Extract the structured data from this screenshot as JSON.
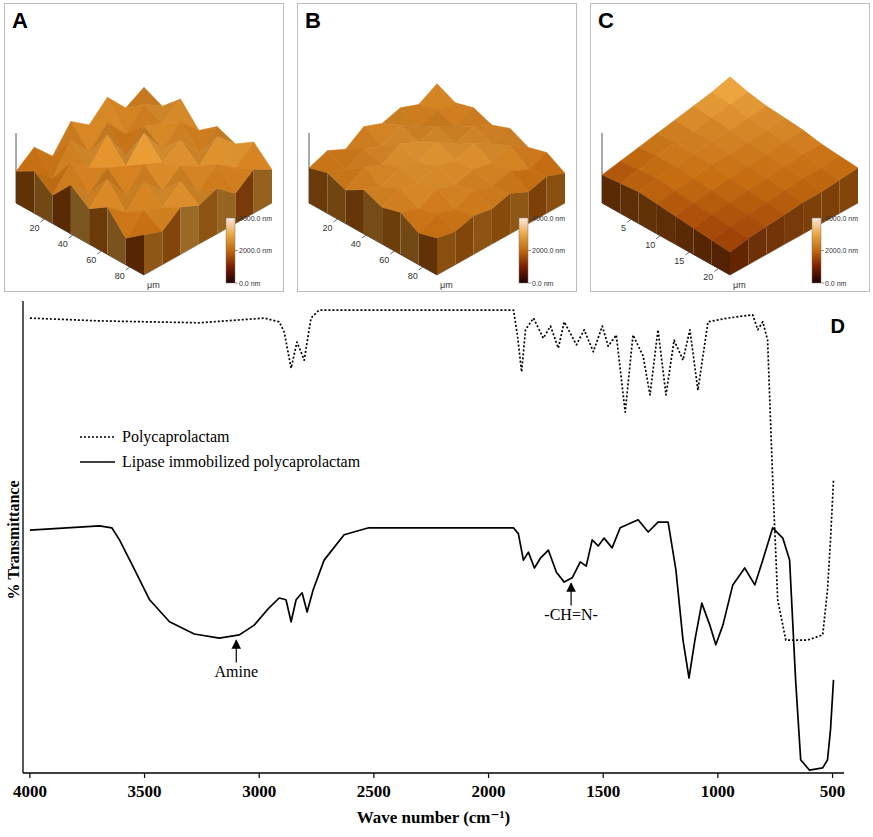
{
  "chart_data": [
    {
      "type": "surface",
      "panel": "A",
      "xlabel": "μm",
      "xlim": [
        0,
        90
      ],
      "xticks": [
        20,
        40,
        60,
        80
      ],
      "colorbar_range": [
        0,
        4000
      ],
      "colorbar_ticks": [
        {
          "value": 0,
          "label": "0.0 nm"
        },
        {
          "value": 2000,
          "label": "2000.0 nm"
        },
        {
          "value": 4000,
          "label": "4000.0 nm"
        }
      ],
      "heights": [
        [
          1800,
          2600,
          1500,
          2900,
          2100,
          3100,
          1900,
          2500
        ],
        [
          2400,
          1400,
          3000,
          1700,
          2800,
          1600,
          2700,
          2000
        ],
        [
          1600,
          2900,
          2000,
          3300,
          1500,
          2600,
          2200,
          3000
        ],
        [
          2800,
          1700,
          2600,
          2100,
          3400,
          1900,
          2900,
          1800
        ],
        [
          2000,
          3100,
          1600,
          2800,
          2300,
          3000,
          1700,
          2600
        ],
        [
          2700,
          1800,
          2900,
          1900,
          2700,
          2100,
          3200,
          2200
        ],
        [
          1500,
          2500,
          2100,
          3000,
          1800,
          2800,
          2000,
          2900
        ],
        [
          2300,
          1900,
          2700,
          2200,
          2600,
          1700,
          2500,
          1900
        ]
      ]
    },
    {
      "type": "surface",
      "panel": "B",
      "xlabel": "μm",
      "xlim": [
        0,
        90
      ],
      "xticks": [
        20,
        40,
        60,
        80
      ],
      "colorbar_range": [
        0,
        4000
      ],
      "colorbar_ticks": [
        {
          "value": 0,
          "label": "0.0 nm"
        },
        {
          "value": 2000,
          "label": "2000.0 nm"
        },
        {
          "value": 4000,
          "label": "4000.0 nm"
        }
      ],
      "heights": [
        [
          2000,
          2400,
          1900,
          2600,
          2200,
          2500,
          2100,
          2700
        ],
        [
          2300,
          1900,
          2500,
          2100,
          2700,
          2000,
          2400,
          2200
        ],
        [
          1900,
          2600,
          2200,
          2800,
          2300,
          2600,
          2000,
          2500
        ],
        [
          2500,
          2100,
          2700,
          2300,
          2900,
          2200,
          2600,
          2100
        ],
        [
          2100,
          2600,
          2300,
          2700,
          2400,
          2800,
          2200,
          2500
        ],
        [
          2400,
          2000,
          2600,
          2200,
          2500,
          2300,
          2700,
          2000
        ],
        [
          1800,
          2300,
          2000,
          2500,
          2100,
          2400,
          1900,
          2300
        ],
        [
          2100,
          1900,
          2200,
          2000,
          2300,
          1800,
          2100,
          1700
        ]
      ]
    },
    {
      "type": "surface",
      "panel": "C",
      "xlabel": "μm",
      "xlim": [
        0,
        22
      ],
      "xticks": [
        5,
        10,
        15,
        20
      ],
      "colorbar_range": [
        0,
        4000
      ],
      "colorbar_ticks": [
        {
          "value": 0,
          "label": "0.0 nm"
        },
        {
          "value": 2000,
          "label": "2000.0 nm"
        },
        {
          "value": 4000,
          "label": "4000.0 nm"
        }
      ],
      "heights": [
        [
          1600,
          1800,
          2000,
          2200,
          2400,
          2600,
          2800,
          3100
        ],
        [
          1700,
          1900,
          2100,
          2300,
          2300,
          2500,
          2700,
          2800
        ],
        [
          1800,
          2000,
          2100,
          2200,
          2400,
          2400,
          2500,
          2600
        ],
        [
          1700,
          1900,
          2000,
          2200,
          2200,
          2300,
          2400,
          2500
        ],
        [
          1600,
          1800,
          1900,
          2000,
          2100,
          2200,
          2300,
          2400
        ],
        [
          1500,
          1700,
          1800,
          1900,
          2000,
          2100,
          2200,
          2200
        ],
        [
          1400,
          1600,
          1700,
          1800,
          1900,
          2000,
          2000,
          2100
        ],
        [
          1300,
          1500,
          1600,
          1700,
          1800,
          1800,
          1900,
          2000
        ]
      ]
    },
    {
      "type": "line",
      "panel": "D",
      "xlabel": "Wave number (cm⁻¹)",
      "ylabel": "% Transmittance",
      "xlim": [
        4030,
        450
      ],
      "xticks": [
        4000,
        3500,
        3000,
        2500,
        2000,
        1500,
        1000,
        500
      ],
      "ylim": [
        0,
        100
      ],
      "tick_labels": "x",
      "legend": "left",
      "series": [
        {
          "name": "Polycaprolactam",
          "color": "#000000",
          "line_style": "dotted",
          "x": [
            4000,
            3696,
            3261,
            2978,
            2913,
            2891,
            2861,
            2835,
            2804,
            2774,
            2739,
            1891,
            1874,
            1856,
            1839,
            1804,
            1761,
            1730,
            1696,
            1670,
            1617,
            1583,
            1543,
            1504,
            1478,
            1443,
            1404,
            1370,
            1326,
            1296,
            1261,
            1226,
            1191,
            1152,
            1122,
            1087,
            1043,
            957,
            848,
            826,
            804,
            783,
            761,
            739,
            704,
            609,
            543,
            522,
            509,
            496
          ],
          "values": [
            97.2,
            96.6,
            96.2,
            97.2,
            96.4,
            94.2,
            86.5,
            92.1,
            88.2,
            97.2,
            98.9,
            98.9,
            93.6,
            85.7,
            94.7,
            97.2,
            92.9,
            95.5,
            90.8,
            96.4,
            91.5,
            94.7,
            90.0,
            95.5,
            91.2,
            93.6,
            77.1,
            93.6,
            89.1,
            80.8,
            94.7,
            80.8,
            92.5,
            88.2,
            94.7,
            81.8,
            96.4,
            97.2,
            97.9,
            94.7,
            96.4,
            92.5,
            62.6,
            37.0,
            28.4,
            28.4,
            29.5,
            39.1,
            49.8,
            62.6
          ]
        },
        {
          "name": "Lipase immobilized polycaprolactam",
          "color": "#000000",
          "line_style": "solid",
          "x": [
            4000,
            3696,
            3643,
            3609,
            3543,
            3478,
            3391,
            3283,
            3174,
            3087,
            3022,
            2957,
            2913,
            2883,
            2861,
            2839,
            2813,
            2791,
            2765,
            2717,
            2630,
            2522,
            1891,
            1870,
            1848,
            1826,
            1800,
            1774,
            1739,
            1704,
            1670,
            1635,
            1600,
            1574,
            1548,
            1522,
            1496,
            1461,
            1426,
            1348,
            1304,
            1261,
            1217,
            1183,
            1152,
            1126,
            1100,
            1070,
            1035,
            1009,
            978,
            935,
            883,
            839,
            804,
            761,
            717,
            687,
            661,
            639,
            600,
            543,
            522,
            509,
            496
          ],
          "values": [
            51.9,
            52.8,
            52.4,
            49.8,
            43.4,
            37.0,
            32.3,
            29.7,
            28.8,
            29.5,
            31.6,
            35.3,
            37.4,
            37.0,
            32.3,
            37.0,
            38.5,
            34.4,
            39.1,
            45.5,
            50.9,
            52.4,
            52.4,
            51.1,
            45.5,
            47.2,
            43.8,
            45.9,
            47.6,
            42.9,
            40.8,
            41.7,
            45.1,
            44.2,
            49.8,
            48.5,
            50.2,
            48.1,
            52.4,
            54.1,
            51.5,
            53.6,
            53.6,
            43.4,
            28.4,
            20.3,
            28.4,
            36.3,
            31.6,
            27.4,
            31.6,
            40.2,
            43.8,
            40.2,
            45.5,
            52.4,
            50.2,
            45.5,
            19.9,
            2.8,
            0.6,
            1.1,
            2.8,
            9.2,
            19.9
          ]
        }
      ],
      "annotations": [
        {
          "text": "Amine",
          "x": 3100
        },
        {
          "text": "-CH=N-",
          "x": 1640
        }
      ]
    }
  ]
}
